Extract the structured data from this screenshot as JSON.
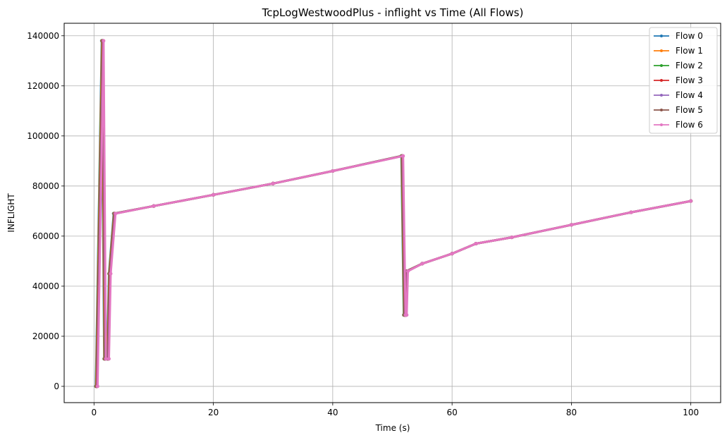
{
  "chart_data": {
    "type": "line",
    "title": "TcpLogWestwoodPlus - inflight vs Time (All Flows)",
    "xlabel": "Time (s)",
    "ylabel": "INFLIGHT",
    "xlim": [
      -5,
      105
    ],
    "ylim": [
      -6500,
      145000
    ],
    "xticks": [
      0,
      20,
      40,
      60,
      80,
      100
    ],
    "yticks": [
      0,
      20000,
      40000,
      60000,
      80000,
      100000,
      120000,
      140000
    ],
    "xtick_labels": [
      "0",
      "20",
      "40",
      "60",
      "80",
      "100"
    ],
    "ytick_labels": [
      "0",
      "20000",
      "40000",
      "60000",
      "80000",
      "100000",
      "120000",
      "140000"
    ],
    "grid": true,
    "legend_position": "top-right",
    "series": [
      {
        "name": "Flow 0",
        "color": "#1f77b4",
        "x": [
          0.3,
          1.3,
          1.7,
          2.2,
          2.5,
          3.3,
          10,
          20,
          30,
          40,
          51.5,
          51.9,
          52.1,
          52.3,
          55,
          60,
          64,
          70,
          80,
          90,
          100
        ],
        "y": [
          0,
          138000,
          11000,
          11000,
          45000,
          69000,
          72000,
          76500,
          81000,
          86000,
          92000,
          28500,
          28500,
          46000,
          49000,
          53000,
          57000,
          59500,
          64500,
          69500,
          74000
        ]
      },
      {
        "name": "Flow 1",
        "color": "#ff7f0e",
        "x": [
          0.35,
          1.35,
          1.75,
          2.25,
          2.55,
          3.35,
          10,
          20,
          30,
          40,
          51.55,
          51.95,
          52.15,
          52.35,
          55,
          60,
          64,
          70,
          80,
          90,
          100
        ],
        "y": [
          0,
          138000,
          11000,
          11000,
          45000,
          69000,
          72000,
          76500,
          81000,
          86000,
          92000,
          28500,
          28500,
          46000,
          49000,
          53000,
          57000,
          59500,
          64500,
          69500,
          74000
        ]
      },
      {
        "name": "Flow 2",
        "color": "#2ca02c",
        "x": [
          0.4,
          1.4,
          1.8,
          2.3,
          2.6,
          3.4,
          10,
          20,
          30,
          40,
          51.6,
          52.0,
          52.2,
          52.4,
          55,
          60,
          64,
          70,
          80,
          90,
          100
        ],
        "y": [
          0,
          138000,
          11000,
          11000,
          45000,
          69000,
          72000,
          76500,
          81000,
          86000,
          92000,
          28500,
          28500,
          46000,
          49000,
          53000,
          57000,
          59500,
          64500,
          69500,
          74000
        ]
      },
      {
        "name": "Flow 3",
        "color": "#d62728",
        "x": [
          0.45,
          1.45,
          1.85,
          2.35,
          2.65,
          3.45,
          10,
          20,
          30,
          40,
          51.65,
          52.05,
          52.25,
          52.45,
          55,
          60,
          64,
          70,
          80,
          90,
          100
        ],
        "y": [
          0,
          138000,
          11000,
          11000,
          45000,
          69000,
          72000,
          76500,
          81000,
          86000,
          92000,
          28500,
          28500,
          46000,
          49000,
          53000,
          57000,
          59500,
          64500,
          69500,
          74000
        ]
      },
      {
        "name": "Flow 4",
        "color": "#9467bd",
        "x": [
          0.5,
          1.5,
          1.9,
          2.4,
          2.7,
          3.5,
          10,
          20,
          30,
          40,
          51.7,
          52.1,
          52.3,
          52.5,
          55,
          60,
          64,
          70,
          80,
          90,
          100
        ],
        "y": [
          0,
          138000,
          11000,
          11000,
          45000,
          69000,
          72000,
          76500,
          81000,
          86000,
          92000,
          28500,
          28500,
          46000,
          49000,
          53000,
          57000,
          59500,
          64500,
          69500,
          74000
        ]
      },
      {
        "name": "Flow 5",
        "color": "#8c564b",
        "x": [
          0.55,
          1.55,
          1.95,
          2.45,
          2.75,
          3.55,
          10,
          20,
          30,
          40,
          51.75,
          52.15,
          52.35,
          52.55,
          55,
          60,
          64,
          70,
          80,
          90,
          100
        ],
        "y": [
          0,
          138000,
          11000,
          11000,
          45000,
          69000,
          72000,
          76500,
          81000,
          86000,
          92000,
          28500,
          28500,
          46000,
          49000,
          53000,
          57000,
          59500,
          64500,
          69500,
          74000
        ]
      },
      {
        "name": "Flow 6",
        "color": "#e377c2",
        "x": [
          0.6,
          1.6,
          2.0,
          2.5,
          2.8,
          3.6,
          10,
          20,
          30,
          40,
          51.8,
          52.2,
          52.4,
          52.6,
          55,
          60,
          64,
          70,
          80,
          90,
          100
        ],
        "y": [
          0,
          138000,
          11000,
          11000,
          45000,
          69000,
          72000,
          76500,
          81000,
          86000,
          92000,
          28500,
          28500,
          46000,
          49000,
          53000,
          57000,
          59500,
          64500,
          69500,
          74000
        ]
      }
    ]
  }
}
